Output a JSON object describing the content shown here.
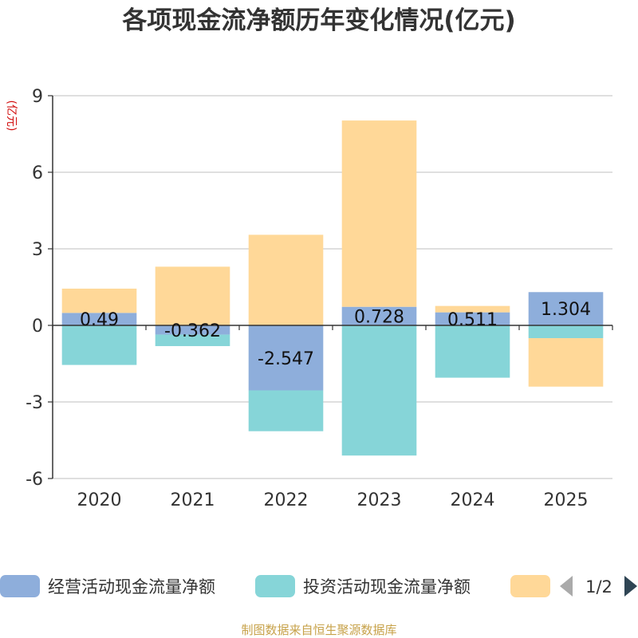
{
  "chart_data": {
    "type": "bar",
    "stacked": true,
    "title": "各项现金流净额历年变化情况(亿元)",
    "unit_label": "(亿元)",
    "categories": [
      "2020",
      "2021",
      "2022",
      "2023",
      "2024",
      "2025"
    ],
    "ylim": [
      -6,
      9
    ],
    "yticks": [
      -6,
      -3,
      0,
      3,
      6,
      9
    ],
    "grid": true,
    "series": [
      {
        "name": "经营活动现金流量净额",
        "color": "#8eaedb",
        "values": [
          0.49,
          -0.362,
          -2.547,
          0.728,
          0.511,
          1.304
        ],
        "labels": [
          "0.49",
          "-0.362",
          "-2.547",
          "0.728",
          "0.511",
          "1.304"
        ]
      },
      {
        "name": "投资活动现金流量净额",
        "color": "#86d5d8",
        "values": [
          -1.55,
          -0.45,
          -1.6,
          -5.1,
          -2.05,
          -0.5
        ]
      },
      {
        "name": "",
        "color": "#ffd898",
        "values": [
          0.95,
          2.3,
          3.55,
          7.3,
          0.25,
          -1.9
        ]
      }
    ],
    "legend_position": "bottom",
    "pager": {
      "text": "1/2"
    },
    "source": "制图数据来自恒生聚源数据库"
  }
}
